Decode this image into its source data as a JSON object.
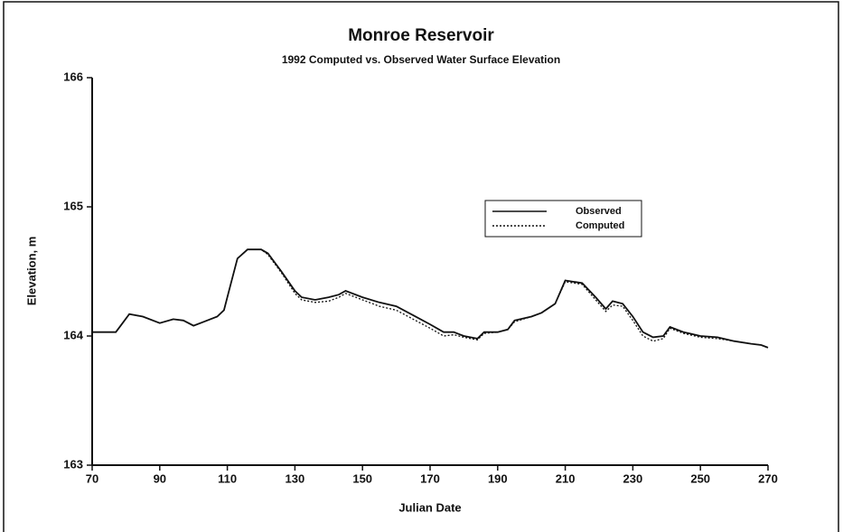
{
  "chart_data": {
    "type": "line",
    "title": "Monroe Reservoir",
    "subtitle": "1992 Computed vs. Observed Water Surface Elevation",
    "xlabel": "Julian Date",
    "ylabel": "Elevation, m",
    "xlim": [
      70,
      270
    ],
    "xticks": [
      70,
      90,
      110,
      130,
      150,
      170,
      190,
      210,
      230,
      250,
      270
    ],
    "ylim": [
      163,
      166
    ],
    "yticks": [
      163,
      164,
      165,
      166
    ],
    "grid": false,
    "legend": "upper right",
    "x": [
      70,
      77,
      79,
      81,
      85,
      90,
      94,
      97,
      100,
      103,
      107,
      109,
      111,
      113,
      116,
      120,
      122,
      126,
      130,
      132,
      136,
      140,
      143,
      145,
      150,
      155,
      160,
      165,
      170,
      174,
      177,
      180,
      184,
      186,
      190,
      193,
      195,
      200,
      203,
      207,
      210,
      215,
      219,
      222,
      224,
      227,
      230,
      233,
      236,
      239,
      241,
      245,
      250,
      255,
      260,
      265,
      268,
      270
    ],
    "series": [
      {
        "name": "Observed",
        "color": "#111111",
        "style": "solid",
        "values": [
          164.03,
          164.03,
          164.1,
          164.17,
          164.15,
          164.1,
          164.13,
          164.12,
          164.08,
          164.11,
          164.15,
          164.2,
          164.4,
          164.6,
          164.67,
          164.67,
          164.64,
          164.5,
          164.35,
          164.3,
          164.28,
          164.3,
          164.32,
          164.35,
          164.3,
          164.26,
          164.23,
          164.16,
          164.09,
          164.03,
          164.03,
          164.0,
          163.98,
          164.03,
          164.03,
          164.05,
          164.12,
          164.15,
          164.18,
          164.25,
          164.43,
          164.41,
          164.3,
          164.21,
          164.27,
          164.25,
          164.15,
          164.03,
          163.99,
          164.0,
          164.07,
          164.03,
          164.0,
          163.99,
          163.96,
          163.94,
          163.93,
          163.91
        ]
      },
      {
        "name": "Computed",
        "color": "#111111",
        "style": "dotted",
        "values": [
          164.03,
          164.03,
          164.1,
          164.17,
          164.15,
          164.1,
          164.13,
          164.12,
          164.08,
          164.11,
          164.15,
          164.2,
          164.4,
          164.6,
          164.67,
          164.67,
          164.63,
          164.49,
          164.33,
          164.28,
          164.26,
          164.27,
          164.3,
          164.33,
          164.28,
          164.23,
          164.2,
          164.13,
          164.06,
          164.0,
          164.01,
          163.99,
          163.97,
          164.02,
          164.03,
          164.05,
          164.11,
          164.15,
          164.18,
          164.25,
          164.42,
          164.4,
          164.28,
          164.19,
          164.24,
          164.23,
          164.12,
          164.0,
          163.96,
          163.98,
          164.06,
          164.02,
          163.99,
          163.98,
          163.96,
          163.94,
          163.93,
          163.91
        ]
      }
    ]
  }
}
